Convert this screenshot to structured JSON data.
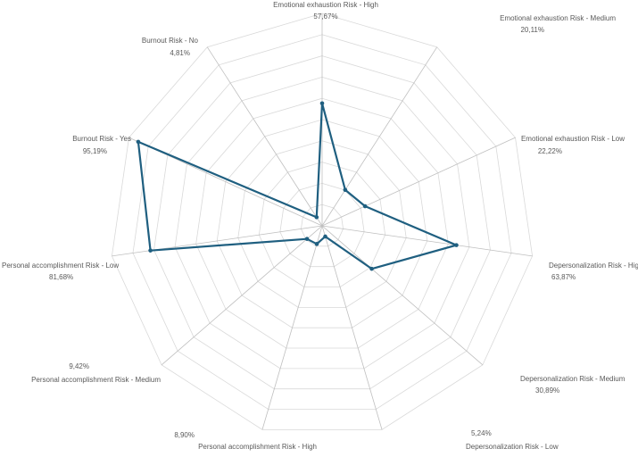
{
  "chart_data": {
    "type": "radar",
    "title": "",
    "categories": [
      "Emotional exhaustion Risk - High",
      "Emotional exhaustion Risk - Medium",
      "Emotional exhaustion Risk - Low",
      "Depersonalization Risk - High",
      "Depersonalization Risk - Medium",
      "Depersonalization Risk - Low",
      "Personal accomplishment Risk - High",
      "Personal accomplishment Risk - Medium",
      "Personal accomplishment Risk - Low",
      "Burnout Risk - Yes",
      "Burnout Risk - No"
    ],
    "value_labels": [
      "57,67%",
      "20,11%",
      "22,22%",
      "63,87%",
      "30,89%",
      "5,24%",
      "8,90%",
      "9,42%",
      "81,68%",
      "95,19%",
      "4,81%"
    ],
    "values": [
      57.67,
      20.11,
      22.22,
      63.87,
      30.89,
      5.24,
      8.9,
      9.42,
      81.68,
      95.19,
      4.81
    ],
    "range": [
      0,
      100
    ],
    "grid": true,
    "legend": "none",
    "series_color": "#1f5f80",
    "grid_color": "#d9d9d9"
  }
}
